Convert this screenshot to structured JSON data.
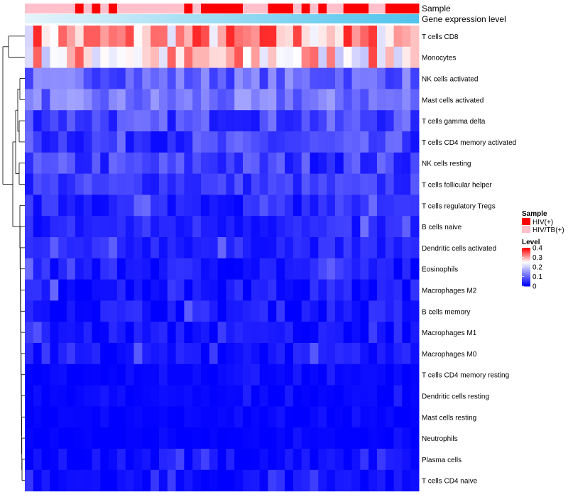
{
  "colors": {
    "low": "#0000ff",
    "mid": "#ffffff",
    "high": "#ff0000",
    "hiv": "#ff0000",
    "hivtb": "#ffc0cb",
    "annotation_gradient_start": "#e6f4fb",
    "annotation_gradient_end": "#4ec3ec"
  },
  "chart_data": {
    "type": "heatmap",
    "title": "",
    "n_samples": 47,
    "value_range": [
      0,
      0.4
    ],
    "annotations": [
      "Sample",
      "Gene expression level"
    ],
    "sample_groups": [
      "HIV/TB(+)",
      "HIV/TB(+)",
      "HIV/TB(+)",
      "HIV/TB(+)",
      "HIV/TB(+)",
      "HIV/TB(+)",
      "HIV(+)",
      "HIV/TB(+)",
      "HIV(+)",
      "HIV/TB(+)",
      "HIV(+)",
      "HIV/TB(+)",
      "HIV/TB(+)",
      "HIV/TB(+)",
      "HIV/TB(+)",
      "HIV/TB(+)",
      "HIV/TB(+)",
      "HIV/TB(+)",
      "HIV/TB(+)",
      "HIV(+)",
      "HIV/TB(+)",
      "HIV(+)",
      "HIV(+)",
      "HIV(+)",
      "HIV(+)",
      "HIV(+)",
      "HIV/TB(+)",
      "HIV/TB(+)",
      "HIV/TB(+)",
      "HIV(+)",
      "HIV(+)",
      "HIV(+)",
      "HIV/TB(+)",
      "HIV(+)",
      "HIV/TB(+)",
      "HIV(+)",
      "HIV/TB(+)",
      "HIV/TB(+)",
      "HIV(+)",
      "HIV(+)",
      "HIV(+)",
      "HIV/TB(+)",
      "HIV/TB(+)",
      "HIV(+)",
      "HIV(+)",
      "HIV(+)",
      "HIV(+)"
    ],
    "rows": [
      "T cells CD8",
      "Monocytes",
      "NK cells activated",
      "Mast cells activated",
      "T cells gamma delta",
      "T cells CD4 memory activated",
      "NK cells resting",
      "T cells follicular helper",
      "T cells regulatory  Tregs",
      "B cells naive",
      "Dendritic cells activated",
      "Eosinophils",
      "Macrophages M2",
      "B cells memory",
      "Macrophages M1",
      "Macrophages M0",
      "T cells CD4 memory resting",
      "Dendritic cells resting",
      "Mast cells resting",
      "Neutrophils",
      "Plasma cells",
      "T cells CD4 naive"
    ],
    "row_means": [
      0.3,
      0.27,
      0.1,
      0.11,
      0.07,
      0.06,
      0.06,
      0.055,
      0.035,
      0.035,
      0.035,
      0.025,
      0.022,
      0.025,
      0.018,
      0.018,
      0.005,
      0.005,
      0.003,
      0.003,
      0.012,
      0.01
    ],
    "row_spread": [
      0.09,
      0.09,
      0.05,
      0.05,
      0.05,
      0.05,
      0.05,
      0.035,
      0.03,
      0.03,
      0.025,
      0.03,
      0.03,
      0.03,
      0.025,
      0.025,
      0.01,
      0.01,
      0.006,
      0.006,
      0.025,
      0.02
    ],
    "dendrogram": "hierarchical clustering of rows (left side)"
  },
  "legend": {
    "sample_title": "Sample",
    "sample_items": [
      "HIV(+)",
      "HIV/TB(+)"
    ],
    "level_title": "Level",
    "level_ticks": [
      "0.4",
      "0.3",
      "0.2",
      "0.1",
      "0"
    ],
    "level_values": [
      0.4,
      0.3,
      0.2,
      0.1,
      0
    ]
  }
}
